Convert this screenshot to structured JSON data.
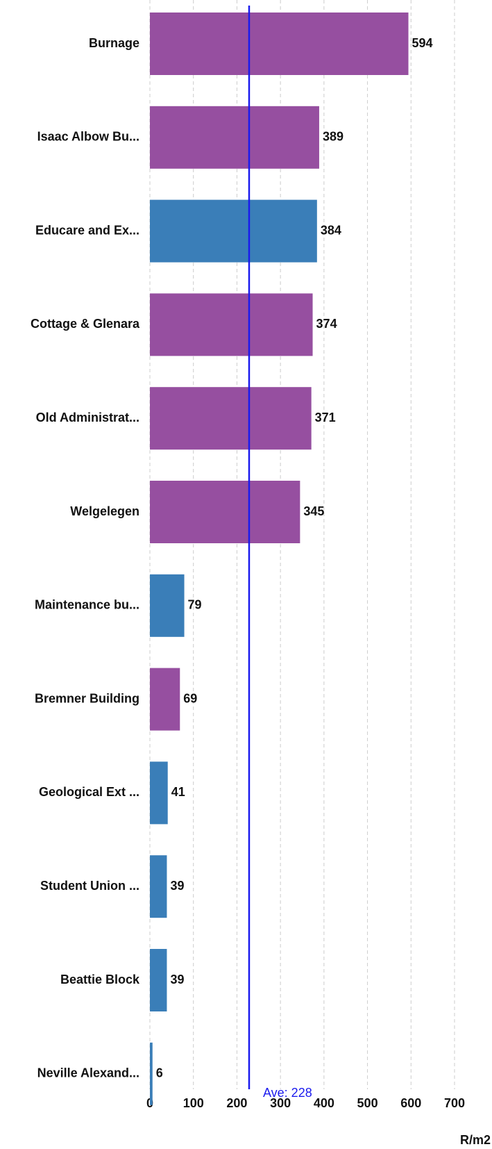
{
  "chart_data": {
    "type": "bar",
    "orientation": "horizontal",
    "categories": [
      "Burnage",
      "Isaac Albow Bu...",
      "Educare and Ex...",
      "Cottage & Glenara",
      "Old Administrat...",
      "Welgelegen",
      "Maintenance bu...",
      "Bremner Building",
      "Geological Ext ...",
      "Student Union ...",
      "Beattie Block",
      "Neville Alexand..."
    ],
    "values": [
      594,
      389,
      384,
      374,
      371,
      345,
      79,
      69,
      41,
      39,
      39,
      6
    ],
    "colors": [
      "#964fa0",
      "#964fa0",
      "#3a7eb8",
      "#964fa0",
      "#964fa0",
      "#964fa0",
      "#3a7eb8",
      "#964fa0",
      "#3a7eb8",
      "#3a7eb8",
      "#3a7eb8",
      "#3a7eb8"
    ],
    "xlim": [
      0,
      700
    ],
    "xticks": [
      0,
      100,
      200,
      300,
      400,
      500,
      600,
      700
    ],
    "x_label": "R/m2",
    "grid": true,
    "average": {
      "value": 228,
      "label": "Ave: 228",
      "color": "#1a1aee"
    }
  }
}
